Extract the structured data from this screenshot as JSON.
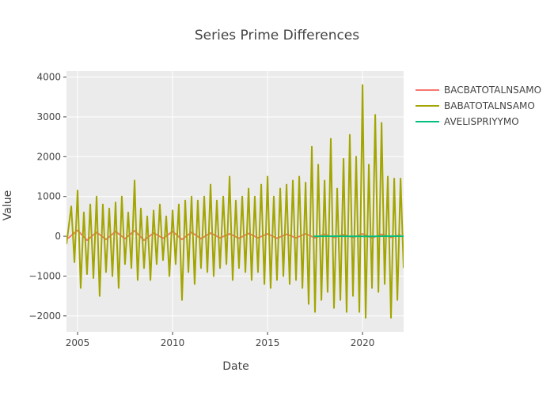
{
  "chart_data": {
    "type": "line",
    "title": "Series Prime Differences",
    "xlabel": "Date",
    "ylabel": "Value",
    "xlim": [
      "2004-06-01",
      "2022-03-01"
    ],
    "ylim": [
      -2400,
      4150
    ],
    "x_ticks": [
      {
        "value": "2005-01-01",
        "label": "2005"
      },
      {
        "value": "2010-01-01",
        "label": "2010"
      },
      {
        "value": "2015-01-01",
        "label": "2015"
      },
      {
        "value": "2020-01-01",
        "label": "2020"
      }
    ],
    "y_ticks": [
      {
        "value": -2000,
        "label": "−2000"
      },
      {
        "value": -1000,
        "label": "−1000"
      },
      {
        "value": 0,
        "label": "0"
      },
      {
        "value": 1000,
        "label": "1000"
      },
      {
        "value": 2000,
        "label": "2000"
      },
      {
        "value": 3000,
        "label": "3000"
      },
      {
        "value": 4000,
        "label": "4000"
      }
    ],
    "grid": true,
    "legend_position": "top-right",
    "series": [
      {
        "name": "BACBATOTALNSAMO",
        "color": "#F8766D",
        "x": [
          "2004-07-01",
          "2005-01-01",
          "2005-07-01",
          "2006-01-01",
          "2006-07-01",
          "2007-01-01",
          "2007-07-01",
          "2008-01-01",
          "2008-07-01",
          "2009-01-01",
          "2009-07-01",
          "2010-01-01",
          "2010-07-01",
          "2011-01-01",
          "2011-07-01",
          "2012-01-01",
          "2012-07-01",
          "2013-01-01",
          "2013-07-01",
          "2014-01-01",
          "2014-07-01",
          "2015-01-01",
          "2015-07-01",
          "2016-01-01",
          "2016-07-01",
          "2017-01-01",
          "2017-07-01",
          "2018-01-01",
          "2018-07-01",
          "2019-01-01",
          "2019-07-01",
          "2020-01-01",
          "2020-07-01",
          "2021-01-01",
          "2021-07-01",
          "2022-01-01"
        ],
        "y": [
          -50,
          150,
          -100,
          100,
          -80,
          120,
          -60,
          140,
          -100,
          80,
          -50,
          120,
          -80,
          100,
          -60,
          80,
          -40,
          60,
          -50,
          70,
          -40,
          60,
          -50,
          50,
          -40,
          60,
          -40,
          50,
          -30,
          40,
          -30,
          60,
          -40,
          50,
          -30,
          40
        ]
      },
      {
        "name": "BABATOTALNSAMO",
        "color": "#A3A500",
        "x": [
          "2004-06-01",
          "2004-09-01",
          "2004-11-01",
          "2005-01-01",
          "2005-03-01",
          "2005-05-01",
          "2005-07-01",
          "2005-09-01",
          "2005-11-01",
          "2006-01-01",
          "2006-03-01",
          "2006-05-01",
          "2006-07-01",
          "2006-09-01",
          "2006-11-01",
          "2007-01-01",
          "2007-03-01",
          "2007-05-01",
          "2007-07-01",
          "2007-09-01",
          "2007-11-01",
          "2008-01-01",
          "2008-03-01",
          "2008-05-01",
          "2008-07-01",
          "2008-09-01",
          "2008-11-01",
          "2009-01-01",
          "2009-03-01",
          "2009-05-01",
          "2009-07-01",
          "2009-09-01",
          "2009-11-01",
          "2010-01-01",
          "2010-03-01",
          "2010-05-01",
          "2010-07-01",
          "2010-09-01",
          "2010-11-01",
          "2011-01-01",
          "2011-03-01",
          "2011-05-01",
          "2011-07-01",
          "2011-09-01",
          "2011-11-01",
          "2012-01-01",
          "2012-03-01",
          "2012-05-01",
          "2012-07-01",
          "2012-09-01",
          "2012-11-01",
          "2013-01-01",
          "2013-03-01",
          "2013-05-01",
          "2013-07-01",
          "2013-09-01",
          "2013-11-01",
          "2014-01-01",
          "2014-03-01",
          "2014-05-01",
          "2014-07-01",
          "2014-09-01",
          "2014-11-01",
          "2015-01-01",
          "2015-03-01",
          "2015-05-01",
          "2015-07-01",
          "2015-09-01",
          "2015-11-01",
          "2016-01-01",
          "2016-03-01",
          "2016-05-01",
          "2016-07-01",
          "2016-09-01",
          "2016-11-01",
          "2017-01-01",
          "2017-03-01",
          "2017-05-01",
          "2017-07-01",
          "2017-09-01",
          "2017-11-01",
          "2018-01-01",
          "2018-03-01",
          "2018-05-01",
          "2018-07-01",
          "2018-09-01",
          "2018-11-01",
          "2019-01-01",
          "2019-03-01",
          "2019-05-01",
          "2019-07-01",
          "2019-09-01",
          "2019-11-01",
          "2020-01-01",
          "2020-03-01",
          "2020-05-01",
          "2020-07-01",
          "2020-09-01",
          "2020-11-01",
          "2021-01-01",
          "2021-03-01",
          "2021-05-01",
          "2021-07-01",
          "2021-09-01",
          "2021-11-01",
          "2022-01-01",
          "2022-03-01"
        ],
        "y": [
          -200,
          750,
          -650,
          1150,
          -1300,
          600,
          -950,
          800,
          -1050,
          1000,
          -1500,
          800,
          -900,
          700,
          -1000,
          850,
          -1300,
          1000,
          -700,
          600,
          -800,
          1400,
          -1100,
          700,
          -800,
          500,
          -1100,
          650,
          -700,
          800,
          -600,
          500,
          -1000,
          650,
          -700,
          800,
          -1600,
          900,
          -900,
          1000,
          -1200,
          900,
          -800,
          1000,
          -900,
          1300,
          -1000,
          900,
          -800,
          1000,
          -700,
          1500,
          -1100,
          900,
          -800,
          1000,
          -900,
          1200,
          -1100,
          1000,
          -900,
          1300,
          -1200,
          1500,
          -1300,
          1000,
          -1100,
          1200,
          -1000,
          1300,
          -1200,
          1400,
          -1100,
          1500,
          -1300,
          1350,
          -1700,
          2250,
          -1900,
          1800,
          -1600,
          1400,
          -1400,
          2450,
          -1800,
          1200,
          -1600,
          1950,
          -1900,
          2550,
          -1500,
          2000,
          -1900,
          3800,
          -2050,
          1800,
          -1300,
          3050,
          -1400,
          2850,
          -1200,
          1500,
          -2050,
          1450,
          -1600,
          1450,
          -800
        ]
      },
      {
        "name": "AVELISPRIYYMO",
        "color": "#00BF7D",
        "x": [
          "2017-06-01",
          "2018-06-01",
          "2019-06-01",
          "2020-06-01",
          "2021-06-01",
          "2022-03-01"
        ],
        "y": [
          0,
          2,
          0,
          -3,
          4,
          0
        ]
      }
    ]
  }
}
